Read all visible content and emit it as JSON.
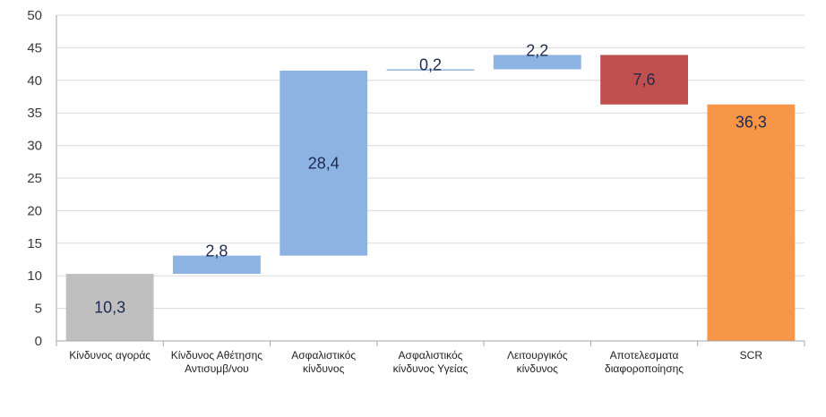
{
  "chart_data": {
    "type": "bar",
    "subtype": "waterfall",
    "title": "",
    "xlabel": "",
    "ylabel": "",
    "ylim": [
      0,
      50
    ],
    "yticks": [
      0,
      5,
      10,
      15,
      20,
      25,
      30,
      35,
      40,
      45,
      50
    ],
    "grid": true,
    "legend": "none",
    "categories": [
      [
        "Κίνδυνος αγοράς"
      ],
      [
        "Κίνδυνος Αθέτησης",
        "Αντισυμβ/νου"
      ],
      [
        "Ασφαλιστικός",
        "κίνδυνος"
      ],
      [
        "Ασφαλιστικός",
        "κίνδυνος Υγείας"
      ],
      [
        "Λειτουργικός",
        "κίνδυνος"
      ],
      [
        "Αποτελεσματα",
        "διαφοροποίησης"
      ],
      [
        "SCR"
      ]
    ],
    "values": [
      10.3,
      2.8,
      28.4,
      0.2,
      2.2,
      -7.6,
      36.3
    ],
    "data_labels": [
      "10,3",
      "2,8",
      "28,4",
      "0,2",
      "2,2",
      "7,6",
      "36,3"
    ],
    "bar_kinds": [
      "total",
      "increase",
      "increase",
      "increase",
      "increase",
      "decrease",
      "total"
    ],
    "colors": {
      "total": "#bfbfbf",
      "increase": "#8db3e2",
      "decrease": "#c0504d",
      "final": "#f79646",
      "grid": "#d9d9d9",
      "axis": "#a6a6a6"
    }
  }
}
